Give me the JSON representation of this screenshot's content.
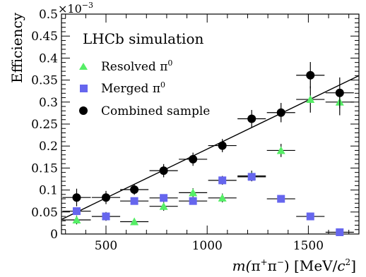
{
  "chart_data": {
    "type": "scatter",
    "annotation": "LHCb simulation",
    "ylabel": "Efficiency",
    "xlabel": {
      "pre": "m(",
      "pi1": "π",
      "sup1": "+",
      "pi2": "π",
      "sup2": "−",
      "mid": ") [MeV/",
      "c": "c",
      "sup3": "2",
      "post": "]"
    },
    "y_multiplier": {
      "base": "×10",
      "exp": "−3"
    },
    "xlim": [
      280,
      1750
    ],
    "ylim": [
      0,
      0.5
    ],
    "x_ticks": [
      "500",
      "1000",
      "1500"
    ],
    "y_ticks": [
      "0",
      "0.05",
      "0.1",
      "0.15",
      "0.2",
      "0.25",
      "0.3",
      "0.35",
      "0.4",
      "0.45",
      "0.5"
    ],
    "x_tick_values": [
      500,
      1000,
      1500
    ],
    "y_tick_values": [
      0,
      0.05,
      0.1,
      0.15,
      0.2,
      0.25,
      0.3,
      0.35,
      0.4,
      0.45,
      0.5
    ],
    "legend_position": "top-left",
    "series": [
      {
        "name": "Resolved π",
        "name_sup": "0",
        "marker": "triangle",
        "color": "#55ee66",
        "points": [
          {
            "x": 355,
            "y": 0.032,
            "xerr": 70,
            "yerr": 0.01
          },
          {
            "x": 500,
            "y": 0.04,
            "xerr": 70,
            "yerr": 0.01
          },
          {
            "x": 640,
            "y": 0.028,
            "xerr": 70,
            "yerr": 0.008
          },
          {
            "x": 785,
            "y": 0.063,
            "xerr": 70,
            "yerr": 0.01
          },
          {
            "x": 930,
            "y": 0.094,
            "xerr": 70,
            "yerr": 0.01
          },
          {
            "x": 1075,
            "y": 0.082,
            "xerr": 70,
            "yerr": 0.01
          },
          {
            "x": 1220,
            "y": 0.132,
            "xerr": 70,
            "yerr": 0.012
          },
          {
            "x": 1365,
            "y": 0.19,
            "xerr": 70,
            "yerr": 0.015
          },
          {
            "x": 1510,
            "y": 0.306,
            "xerr": 70,
            "yerr": 0.03
          },
          {
            "x": 1655,
            "y": 0.3,
            "xerr": 70,
            "yerr": 0.03
          }
        ]
      },
      {
        "name": "Merged π",
        "name_sup": "0",
        "marker": "square",
        "color": "#6666ee",
        "points": [
          {
            "x": 355,
            "y": 0.052,
            "xerr": 70,
            "yerr": 0.008
          },
          {
            "x": 500,
            "y": 0.04,
            "xerr": 70,
            "yerr": 0.006
          },
          {
            "x": 640,
            "y": 0.075,
            "xerr": 70,
            "yerr": 0.008
          },
          {
            "x": 785,
            "y": 0.082,
            "xerr": 70,
            "yerr": 0.008
          },
          {
            "x": 930,
            "y": 0.075,
            "xerr": 70,
            "yerr": 0.008
          },
          {
            "x": 1075,
            "y": 0.122,
            "xerr": 70,
            "yerr": 0.01
          },
          {
            "x": 1220,
            "y": 0.13,
            "xerr": 70,
            "yerr": 0.01
          },
          {
            "x": 1365,
            "y": 0.08,
            "xerr": 70,
            "yerr": 0.008
          },
          {
            "x": 1510,
            "y": 0.04,
            "xerr": 70,
            "yerr": 0.005
          },
          {
            "x": 1655,
            "y": 0.004,
            "xerr": 70,
            "yerr": 0.003
          }
        ]
      },
      {
        "name": "Combined sample",
        "marker": "circle",
        "color": "#000000",
        "points": [
          {
            "x": 355,
            "y": 0.083,
            "xerr": 70,
            "yerr": 0.02
          },
          {
            "x": 500,
            "y": 0.083,
            "xerr": 70,
            "yerr": 0.015
          },
          {
            "x": 640,
            "y": 0.101,
            "xerr": 70,
            "yerr": 0.012
          },
          {
            "x": 785,
            "y": 0.144,
            "xerr": 70,
            "yerr": 0.015
          },
          {
            "x": 930,
            "y": 0.17,
            "xerr": 70,
            "yerr": 0.015
          },
          {
            "x": 1075,
            "y": 0.201,
            "xerr": 70,
            "yerr": 0.015
          },
          {
            "x": 1220,
            "y": 0.262,
            "xerr": 70,
            "yerr": 0.02
          },
          {
            "x": 1365,
            "y": 0.276,
            "xerr": 70,
            "yerr": 0.022
          },
          {
            "x": 1510,
            "y": 0.361,
            "xerr": 70,
            "yerr": 0.03
          },
          {
            "x": 1655,
            "y": 0.321,
            "xerr": 70,
            "yerr": 0.035
          }
        ]
      }
    ],
    "fit_line": {
      "x": [
        280,
        1750
      ],
      "y": [
        0.033,
        0.36
      ],
      "color": "#000000"
    }
  }
}
